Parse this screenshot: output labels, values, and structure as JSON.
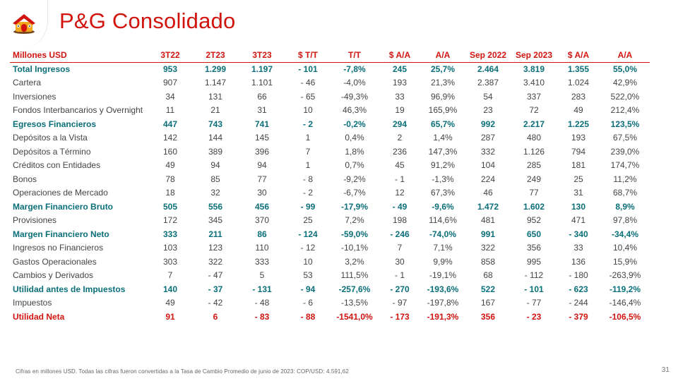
{
  "slide": {
    "title": "P&G Consolidado",
    "logo_icon": "house-logo-icon",
    "footnote": "Cifras en millones USD. Todas las cifras fueron convertidas a la Tasa de Cambio Promedio de junio de 2023: COP/USD: 4.591,62",
    "page_number": "31"
  },
  "colors": {
    "brand_red": "#d2140f",
    "total_teal": "#0a6f79",
    "body_text": "#444444"
  },
  "table": {
    "headers": [
      "Millones  USD",
      "3T22",
      "2T23",
      "3T23",
      "$ T/T",
      "T/T",
      "$ A/A",
      "A/A",
      "Sep 2022",
      "Sep 2023",
      "$ A/A",
      "A/A"
    ],
    "rows": [
      {
        "style": "total",
        "cells": [
          "Total Ingresos",
          "953",
          "1.299",
          "1.197",
          "- 101",
          "-7,8%",
          "245",
          "25,7%",
          "2.464",
          "3.819",
          "1.355",
          "55,0%"
        ]
      },
      {
        "style": "normal",
        "cells": [
          "Cartera",
          "907",
          "1.147",
          "1.101",
          "- 46",
          "-4,0%",
          "193",
          "21,3%",
          "2.387",
          "3.410",
          "1.024",
          "42,9%"
        ]
      },
      {
        "style": "normal",
        "cells": [
          "Inversiones",
          "34",
          "131",
          "66",
          "- 65",
          "-49,3%",
          "33",
          "96,9%",
          "54",
          "337",
          "283",
          "522,0%"
        ]
      },
      {
        "style": "normal",
        "cells": [
          "Fondos Interbancarios y Overnight",
          "11",
          "21",
          "31",
          "10",
          "46,3%",
          "19",
          "165,9%",
          "23",
          "72",
          "49",
          "212,4%"
        ]
      },
      {
        "style": "total",
        "cells": [
          "Egresos Financieros",
          "447",
          "743",
          "741",
          "- 2",
          "-0,2%",
          "294",
          "65,7%",
          "992",
          "2.217",
          "1.225",
          "123,5%"
        ]
      },
      {
        "style": "normal",
        "cells": [
          "Depósitos a la Vista",
          "142",
          "144",
          "145",
          "1",
          "0,4%",
          "2",
          "1,4%",
          "287",
          "480",
          "193",
          "67,5%"
        ]
      },
      {
        "style": "normal",
        "cells": [
          "Depósitos a Término",
          "160",
          "389",
          "396",
          "7",
          "1,8%",
          "236",
          "147,3%",
          "332",
          "1.126",
          "794",
          "239,0%"
        ]
      },
      {
        "style": "normal",
        "cells": [
          "Créditos con Entidades",
          "49",
          "94",
          "94",
          "1",
          "0,7%",
          "45",
          "91,2%",
          "104",
          "285",
          "181",
          "174,7%"
        ]
      },
      {
        "style": "normal",
        "cells": [
          "Bonos",
          "78",
          "85",
          "77",
          "- 8",
          "-9,2%",
          "- 1",
          "-1,3%",
          "224",
          "249",
          "25",
          "11,2%"
        ]
      },
      {
        "style": "normal",
        "cells": [
          "Operaciones de Mercado",
          "18",
          "32",
          "30",
          "- 2",
          "-6,7%",
          "12",
          "67,3%",
          "46",
          "77",
          "31",
          "68,7%"
        ]
      },
      {
        "style": "total",
        "cells": [
          "Margen Financiero Bruto",
          "505",
          "556",
          "456",
          "- 99",
          "-17,9%",
          "- 49",
          "-9,6%",
          "1.472",
          "1.602",
          "130",
          "8,9%"
        ]
      },
      {
        "style": "normal",
        "cells": [
          "Provisiones",
          "172",
          "345",
          "370",
          "25",
          "7,2%",
          "198",
          "114,6%",
          "481",
          "952",
          "471",
          "97,8%"
        ]
      },
      {
        "style": "total",
        "cells": [
          "Margen Financiero Neto",
          "333",
          "211",
          "86",
          "- 124",
          "-59,0%",
          "- 246",
          "-74,0%",
          "991",
          "650",
          "- 340",
          "-34,4%"
        ]
      },
      {
        "style": "normal",
        "cells": [
          "Ingresos no Financieros",
          "103",
          "123",
          "110",
          "- 12",
          "-10,1%",
          "7",
          "7,1%",
          "322",
          "356",
          "33",
          "10,4%"
        ]
      },
      {
        "style": "normal",
        "cells": [
          "Gastos Operacionales",
          "303",
          "322",
          "333",
          "10",
          "3,2%",
          "30",
          "9,9%",
          "858",
          "995",
          "136",
          "15,9%"
        ]
      },
      {
        "style": "normal",
        "cells": [
          "Cambios y Derivados",
          "7",
          "- 47",
          "5",
          "53",
          "111,5%",
          "- 1",
          "-19,1%",
          "68",
          "- 112",
          "- 180",
          "-263,9%"
        ]
      },
      {
        "style": "total",
        "cells": [
          "Utilidad antes de Impuestos",
          "140",
          "- 37",
          "- 131",
          "- 94",
          "-257,6%",
          "- 270",
          "-193,6%",
          "522",
          "- 101",
          "- 623",
          "-119,2%"
        ]
      },
      {
        "style": "normal",
        "cells": [
          "Impuestos",
          "49",
          "- 42",
          "- 48",
          "- 6",
          "-13,5%",
          "- 97",
          "-197,8%",
          "167",
          "- 77",
          "- 244",
          "-146,4%"
        ]
      },
      {
        "style": "net",
        "cells": [
          "Utilidad Neta",
          "91",
          "6",
          "- 83",
          "- 88",
          "-1541,0%",
          "- 173",
          "-191,3%",
          "356",
          "- 23",
          "- 379",
          "-106,5%"
        ]
      }
    ]
  }
}
